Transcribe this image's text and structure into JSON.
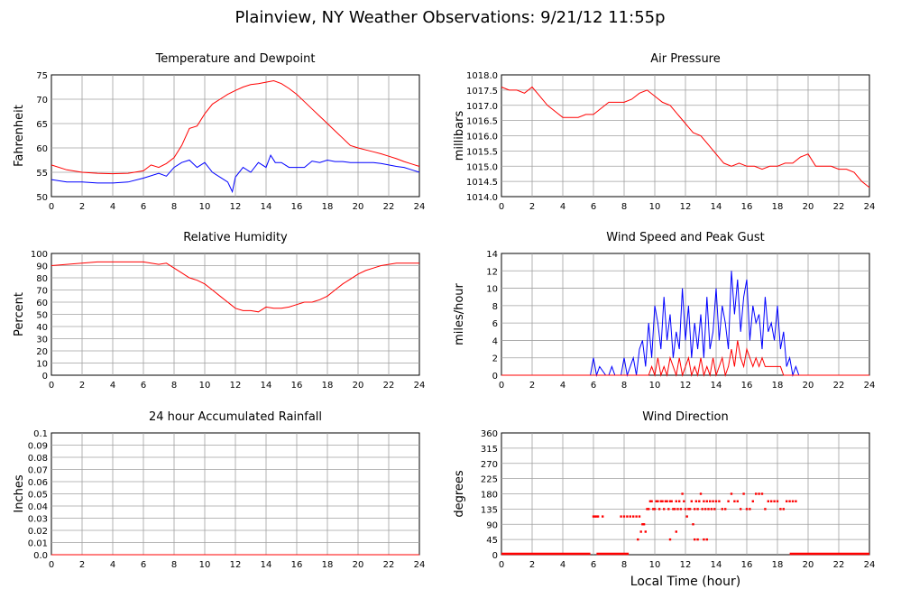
{
  "page": {
    "title": "Plainview, NY Weather Observations: 9/21/12 11:55p",
    "xlabel": "Local Time (hour)"
  },
  "chart_data": [
    {
      "type": "line",
      "title": "Temperature and Dewpoint",
      "ylabel": "Fahrenheit",
      "xlim": [
        0,
        24
      ],
      "ylim": [
        50,
        75
      ],
      "yticks": [
        "50",
        "55",
        "60",
        "65",
        "70",
        "75"
      ],
      "xticks": [
        "0",
        "2",
        "4",
        "6",
        "8",
        "10",
        "12",
        "14",
        "16",
        "18",
        "20",
        "22",
        "24"
      ],
      "grid": true,
      "series": [
        {
          "color": "#ff0000",
          "x": [
            0,
            1,
            2,
            3,
            4,
            5,
            6,
            6.5,
            7,
            7.5,
            8,
            8.5,
            9,
            9.5,
            10,
            10.5,
            11,
            11.5,
            12,
            12.5,
            13,
            13.5,
            14,
            14.5,
            15,
            15.5,
            16,
            16.5,
            17,
            17.5,
            18,
            18.5,
            19,
            19.5,
            20,
            20.5,
            21,
            21.5,
            22,
            22.5,
            23,
            23.5,
            24
          ],
          "y": [
            56.5,
            55.5,
            55,
            54.8,
            54.7,
            54.8,
            55.3,
            56.5,
            56,
            56.8,
            58,
            60.5,
            64,
            64.5,
            67,
            69,
            70,
            71,
            71.8,
            72.5,
            73,
            73.2,
            73.5,
            73.8,
            73.2,
            72.2,
            71,
            69.5,
            68,
            66.5,
            65,
            63.5,
            62,
            60.5,
            60,
            59.6,
            59.2,
            58.8,
            58.3,
            57.8,
            57.2,
            56.7,
            56.2
          ]
        },
        {
          "color": "#0000ff",
          "x": [
            0,
            1,
            2,
            3,
            4,
            5,
            6,
            7,
            7.5,
            8,
            8.5,
            9,
            9.5,
            10,
            10.5,
            11,
            11.5,
            11.8,
            12,
            12.5,
            13,
            13.5,
            14,
            14.3,
            14.6,
            15,
            15.5,
            16,
            16.5,
            17,
            17.5,
            18,
            18.5,
            19,
            19.5,
            20,
            20.5,
            21,
            21.5,
            22,
            22.5,
            23,
            23.5,
            24
          ],
          "y": [
            53.5,
            53,
            53,
            52.8,
            52.8,
            53,
            53.8,
            54.8,
            54.2,
            56,
            57,
            57.5,
            56,
            57,
            55,
            54,
            53,
            51,
            54,
            56,
            55,
            57,
            56,
            58.5,
            57,
            57,
            56,
            56,
            56,
            57.3,
            57,
            57.5,
            57.2,
            57.2,
            57,
            57,
            57,
            57,
            56.8,
            56.5,
            56.2,
            56,
            55.5,
            55
          ]
        }
      ]
    },
    {
      "type": "line",
      "title": "Air Pressure",
      "ylabel": "millibars",
      "xlim": [
        0,
        24
      ],
      "ylim": [
        1014.0,
        1018.0
      ],
      "yticks": [
        "1014.0",
        "1014.5",
        "1015.0",
        "1015.5",
        "1016.0",
        "1016.5",
        "1017.0",
        "1017.5",
        "1018.0"
      ],
      "xticks": [
        "0",
        "2",
        "4",
        "6",
        "8",
        "10",
        "12",
        "14",
        "16",
        "18",
        "20",
        "22",
        "24"
      ],
      "grid": true,
      "series": [
        {
          "color": "#ff0000",
          "x": [
            0,
            0.5,
            1,
            1.5,
            2,
            2.5,
            3,
            3.5,
            4,
            4.5,
            5,
            5.5,
            6,
            6.5,
            7,
            7.5,
            8,
            8.5,
            9,
            9.5,
            10,
            10.5,
            11,
            11.5,
            12,
            12.5,
            13,
            13.5,
            14,
            14.5,
            15,
            15.5,
            16,
            16.5,
            17,
            17.5,
            18,
            18.5,
            19,
            19.5,
            20,
            20.5,
            21,
            21.5,
            22,
            22.5,
            23,
            23.5,
            24
          ],
          "y": [
            1017.6,
            1017.5,
            1017.5,
            1017.4,
            1017.6,
            1017.3,
            1017.0,
            1016.8,
            1016.6,
            1016.6,
            1016.6,
            1016.7,
            1016.7,
            1016.9,
            1017.1,
            1017.1,
            1017.1,
            1017.2,
            1017.4,
            1017.5,
            1017.3,
            1017.1,
            1017.0,
            1016.7,
            1016.4,
            1016.1,
            1016.0,
            1015.7,
            1015.4,
            1015.1,
            1015.0,
            1015.1,
            1015.0,
            1015.0,
            1014.9,
            1015.0,
            1015.0,
            1015.1,
            1015.1,
            1015.3,
            1015.4,
            1015.0,
            1015.0,
            1015.0,
            1014.9,
            1014.9,
            1014.8,
            1014.5,
            1014.3
          ]
        }
      ]
    },
    {
      "type": "line",
      "title": "Relative Humidity",
      "ylabel": "Percent",
      "xlim": [
        0,
        24
      ],
      "ylim": [
        0,
        100
      ],
      "yticks": [
        "0",
        "10",
        "20",
        "30",
        "40",
        "50",
        "60",
        "70",
        "80",
        "90",
        "100"
      ],
      "xticks": [
        "0",
        "2",
        "4",
        "6",
        "8",
        "10",
        "12",
        "14",
        "16",
        "18",
        "20",
        "22",
        "24"
      ],
      "grid": true,
      "series": [
        {
          "color": "#ff0000",
          "x": [
            0,
            1,
            2,
            3,
            4,
            5,
            6,
            6.5,
            7,
            7.5,
            8,
            8.5,
            9,
            9.5,
            10,
            10.5,
            11,
            11.5,
            12,
            12.5,
            13,
            13.5,
            14,
            14.5,
            15,
            15.5,
            16,
            16.5,
            17,
            17.5,
            18,
            18.5,
            19,
            19.5,
            20,
            20.5,
            21,
            21.5,
            22,
            22.5,
            23,
            23.5,
            24
          ],
          "y": [
            90,
            91,
            92,
            93,
            93,
            93,
            93,
            92,
            91,
            92,
            88,
            84,
            80,
            78,
            75,
            70,
            65,
            60,
            55,
            53,
            53,
            52,
            56,
            55,
            55,
            56,
            58,
            60,
            60,
            62,
            65,
            70,
            75,
            79,
            83,
            86,
            88,
            90,
            91,
            92,
            92,
            92,
            92
          ]
        }
      ]
    },
    {
      "type": "line",
      "title": "Wind Speed and Peak Gust",
      "ylabel": "miles/hour",
      "xlim": [
        0,
        24
      ],
      "ylim": [
        0,
        14
      ],
      "yticks": [
        "0",
        "2",
        "4",
        "6",
        "8",
        "10",
        "12",
        "14"
      ],
      "xticks": [
        "0",
        "2",
        "4",
        "6",
        "8",
        "10",
        "12",
        "14",
        "16",
        "18",
        "20",
        "22",
        "24"
      ],
      "grid": true,
      "series": [
        {
          "color": "#0000ff",
          "x": [
            0,
            5.8,
            6,
            6.2,
            6.4,
            6.8,
            7,
            7.2,
            7.4,
            7.8,
            8,
            8.2,
            8.4,
            8.6,
            8.8,
            9,
            9.2,
            9.4,
            9.6,
            9.8,
            10,
            10.2,
            10.4,
            10.6,
            10.8,
            11,
            11.2,
            11.4,
            11.6,
            11.8,
            12,
            12.2,
            12.4,
            12.6,
            12.8,
            13,
            13.2,
            13.4,
            13.6,
            13.8,
            14,
            14.2,
            14.4,
            14.6,
            14.8,
            15,
            15.2,
            15.4,
            15.6,
            15.8,
            16,
            16.2,
            16.4,
            16.6,
            16.8,
            17,
            17.2,
            17.4,
            17.6,
            17.8,
            18,
            18.2,
            18.4,
            18.6,
            18.8,
            19,
            19.2,
            19.4,
            19.6,
            20,
            24
          ],
          "y": [
            0,
            0,
            2,
            0,
            1,
            0,
            0,
            1,
            0,
            0,
            2,
            0,
            1,
            2,
            0,
            3,
            4,
            1,
            6,
            2,
            8,
            6,
            3,
            9,
            4,
            7,
            2,
            5,
            3,
            10,
            4,
            8,
            2,
            6,
            3,
            7,
            2,
            9,
            3,
            5,
            10,
            4,
            8,
            6,
            3,
            12,
            7,
            11,
            5,
            9,
            11,
            4,
            8,
            6,
            7,
            3,
            9,
            5,
            6,
            4,
            8,
            3,
            5,
            1,
            2,
            0,
            1,
            0,
            0,
            0,
            0
          ]
        },
        {
          "color": "#ff0000",
          "x": [
            0,
            9.6,
            9.8,
            10,
            10.2,
            10.4,
            10.6,
            10.8,
            11,
            11.2,
            11.4,
            11.6,
            11.8,
            12,
            12.2,
            12.4,
            12.6,
            12.8,
            13,
            13.2,
            13.4,
            13.6,
            13.8,
            14,
            14.2,
            14.4,
            14.6,
            14.8,
            15,
            15.2,
            15.4,
            15.6,
            15.8,
            16,
            16.2,
            16.4,
            16.6,
            16.8,
            17,
            17.2,
            17.4,
            17.6,
            17.8,
            18,
            18.2,
            18.4,
            18.6,
            18.8,
            24
          ],
          "y": [
            0,
            0,
            1,
            0,
            2,
            0,
            1,
            0,
            2,
            1,
            0,
            2,
            0,
            1,
            2,
            0,
            1,
            0,
            2,
            0,
            1,
            0,
            2,
            0,
            1,
            2,
            0,
            1,
            3,
            1,
            4,
            2,
            1,
            3,
            2,
            1,
            2,
            1,
            2,
            1,
            1,
            1,
            1,
            1,
            1,
            0,
            0,
            0,
            0
          ]
        }
      ]
    },
    {
      "type": "line",
      "title": "24 hour Accumulated Rainfall",
      "ylabel": "Inches",
      "xlim": [
        0,
        24
      ],
      "ylim": [
        0.0,
        0.1
      ],
      "yticks": [
        "0.0",
        "0.01",
        "0.02",
        "0.03",
        "0.04",
        "0.05",
        "0.06",
        "0.07",
        "0.08",
        "0.09",
        "0.1"
      ],
      "xticks": [
        "0",
        "2",
        "4",
        "6",
        "8",
        "10",
        "12",
        "14",
        "16",
        "18",
        "20",
        "22",
        "24"
      ],
      "grid": true,
      "series": [
        {
          "color": "#ff0000",
          "x": [
            0,
            24
          ],
          "y": [
            0,
            0
          ]
        }
      ]
    },
    {
      "type": "scatter",
      "title": "Wind Direction",
      "ylabel": "degrees",
      "xlim": [
        0,
        24
      ],
      "ylim": [
        0,
        360
      ],
      "yticks": [
        "0",
        "45",
        "90",
        "135",
        "180",
        "225",
        "270",
        "315",
        "360"
      ],
      "xticks": [
        "0",
        "2",
        "4",
        "6",
        "8",
        "10",
        "12",
        "14",
        "16",
        "18",
        "20",
        "22",
        "24"
      ],
      "grid": true,
      "series": [
        {
          "color": "#ff0000",
          "segments": [
            [
              0,
              5.8,
              0
            ],
            [
              6.2,
              8.3,
              0
            ],
            [
              18.8,
              24,
              0
            ]
          ],
          "x": [
            6,
            6.1,
            6.2,
            6.3,
            6.6,
            7.8,
            8.0,
            8.2,
            8.4,
            8.6,
            8.8,
            9.0,
            9.2,
            9.4,
            9.5,
            9.6,
            9.7,
            9.8,
            9.9,
            10.0,
            10.1,
            10.2,
            10.3,
            10.4,
            10.5,
            10.6,
            10.7,
            10.8,
            10.9,
            11.0,
            11.1,
            11.2,
            11.3,
            11.4,
            11.5,
            11.6,
            11.7,
            11.8,
            11.9,
            12.0,
            12.1,
            12.2,
            12.3,
            12.4,
            12.5,
            12.6,
            12.7,
            12.8,
            12.9,
            13.0,
            13.1,
            13.2,
            13.3,
            13.4,
            13.5,
            13.6,
            13.7,
            13.8,
            13.9,
            14.0,
            14.2,
            14.4,
            14.6,
            14.8,
            15.0,
            15.2,
            15.4,
            15.6,
            15.8,
            16.0,
            16.2,
            16.4,
            16.6,
            16.8,
            17.0,
            17.2,
            17.4,
            17.6,
            17.8,
            18.0,
            18.2,
            18.4,
            18.6,
            18.8,
            19.0,
            19.2,
            8.9,
            9.1,
            9.3,
            11.0,
            11.4,
            12.6,
            12.8,
            13.2,
            13.4
          ],
          "y": [
            113,
            113,
            113,
            113,
            113,
            113,
            113,
            113,
            113,
            113,
            113,
            113,
            90,
            68,
            135,
            135,
            158,
            158,
            135,
            135,
            158,
            158,
            135,
            158,
            158,
            135,
            158,
            158,
            135,
            158,
            158,
            135,
            135,
            158,
            135,
            158,
            135,
            180,
            158,
            135,
            113,
            135,
            135,
            158,
            90,
            135,
            158,
            135,
            158,
            180,
            135,
            158,
            135,
            158,
            135,
            158,
            135,
            158,
            135,
            158,
            158,
            135,
            135,
            158,
            180,
            158,
            158,
            135,
            180,
            135,
            135,
            158,
            180,
            180,
            180,
            135,
            158,
            158,
            158,
            158,
            135,
            135,
            158,
            158,
            158,
            158,
            45,
            68,
            90,
            45,
            68,
            45,
            45,
            45,
            45
          ]
        }
      ]
    }
  ]
}
